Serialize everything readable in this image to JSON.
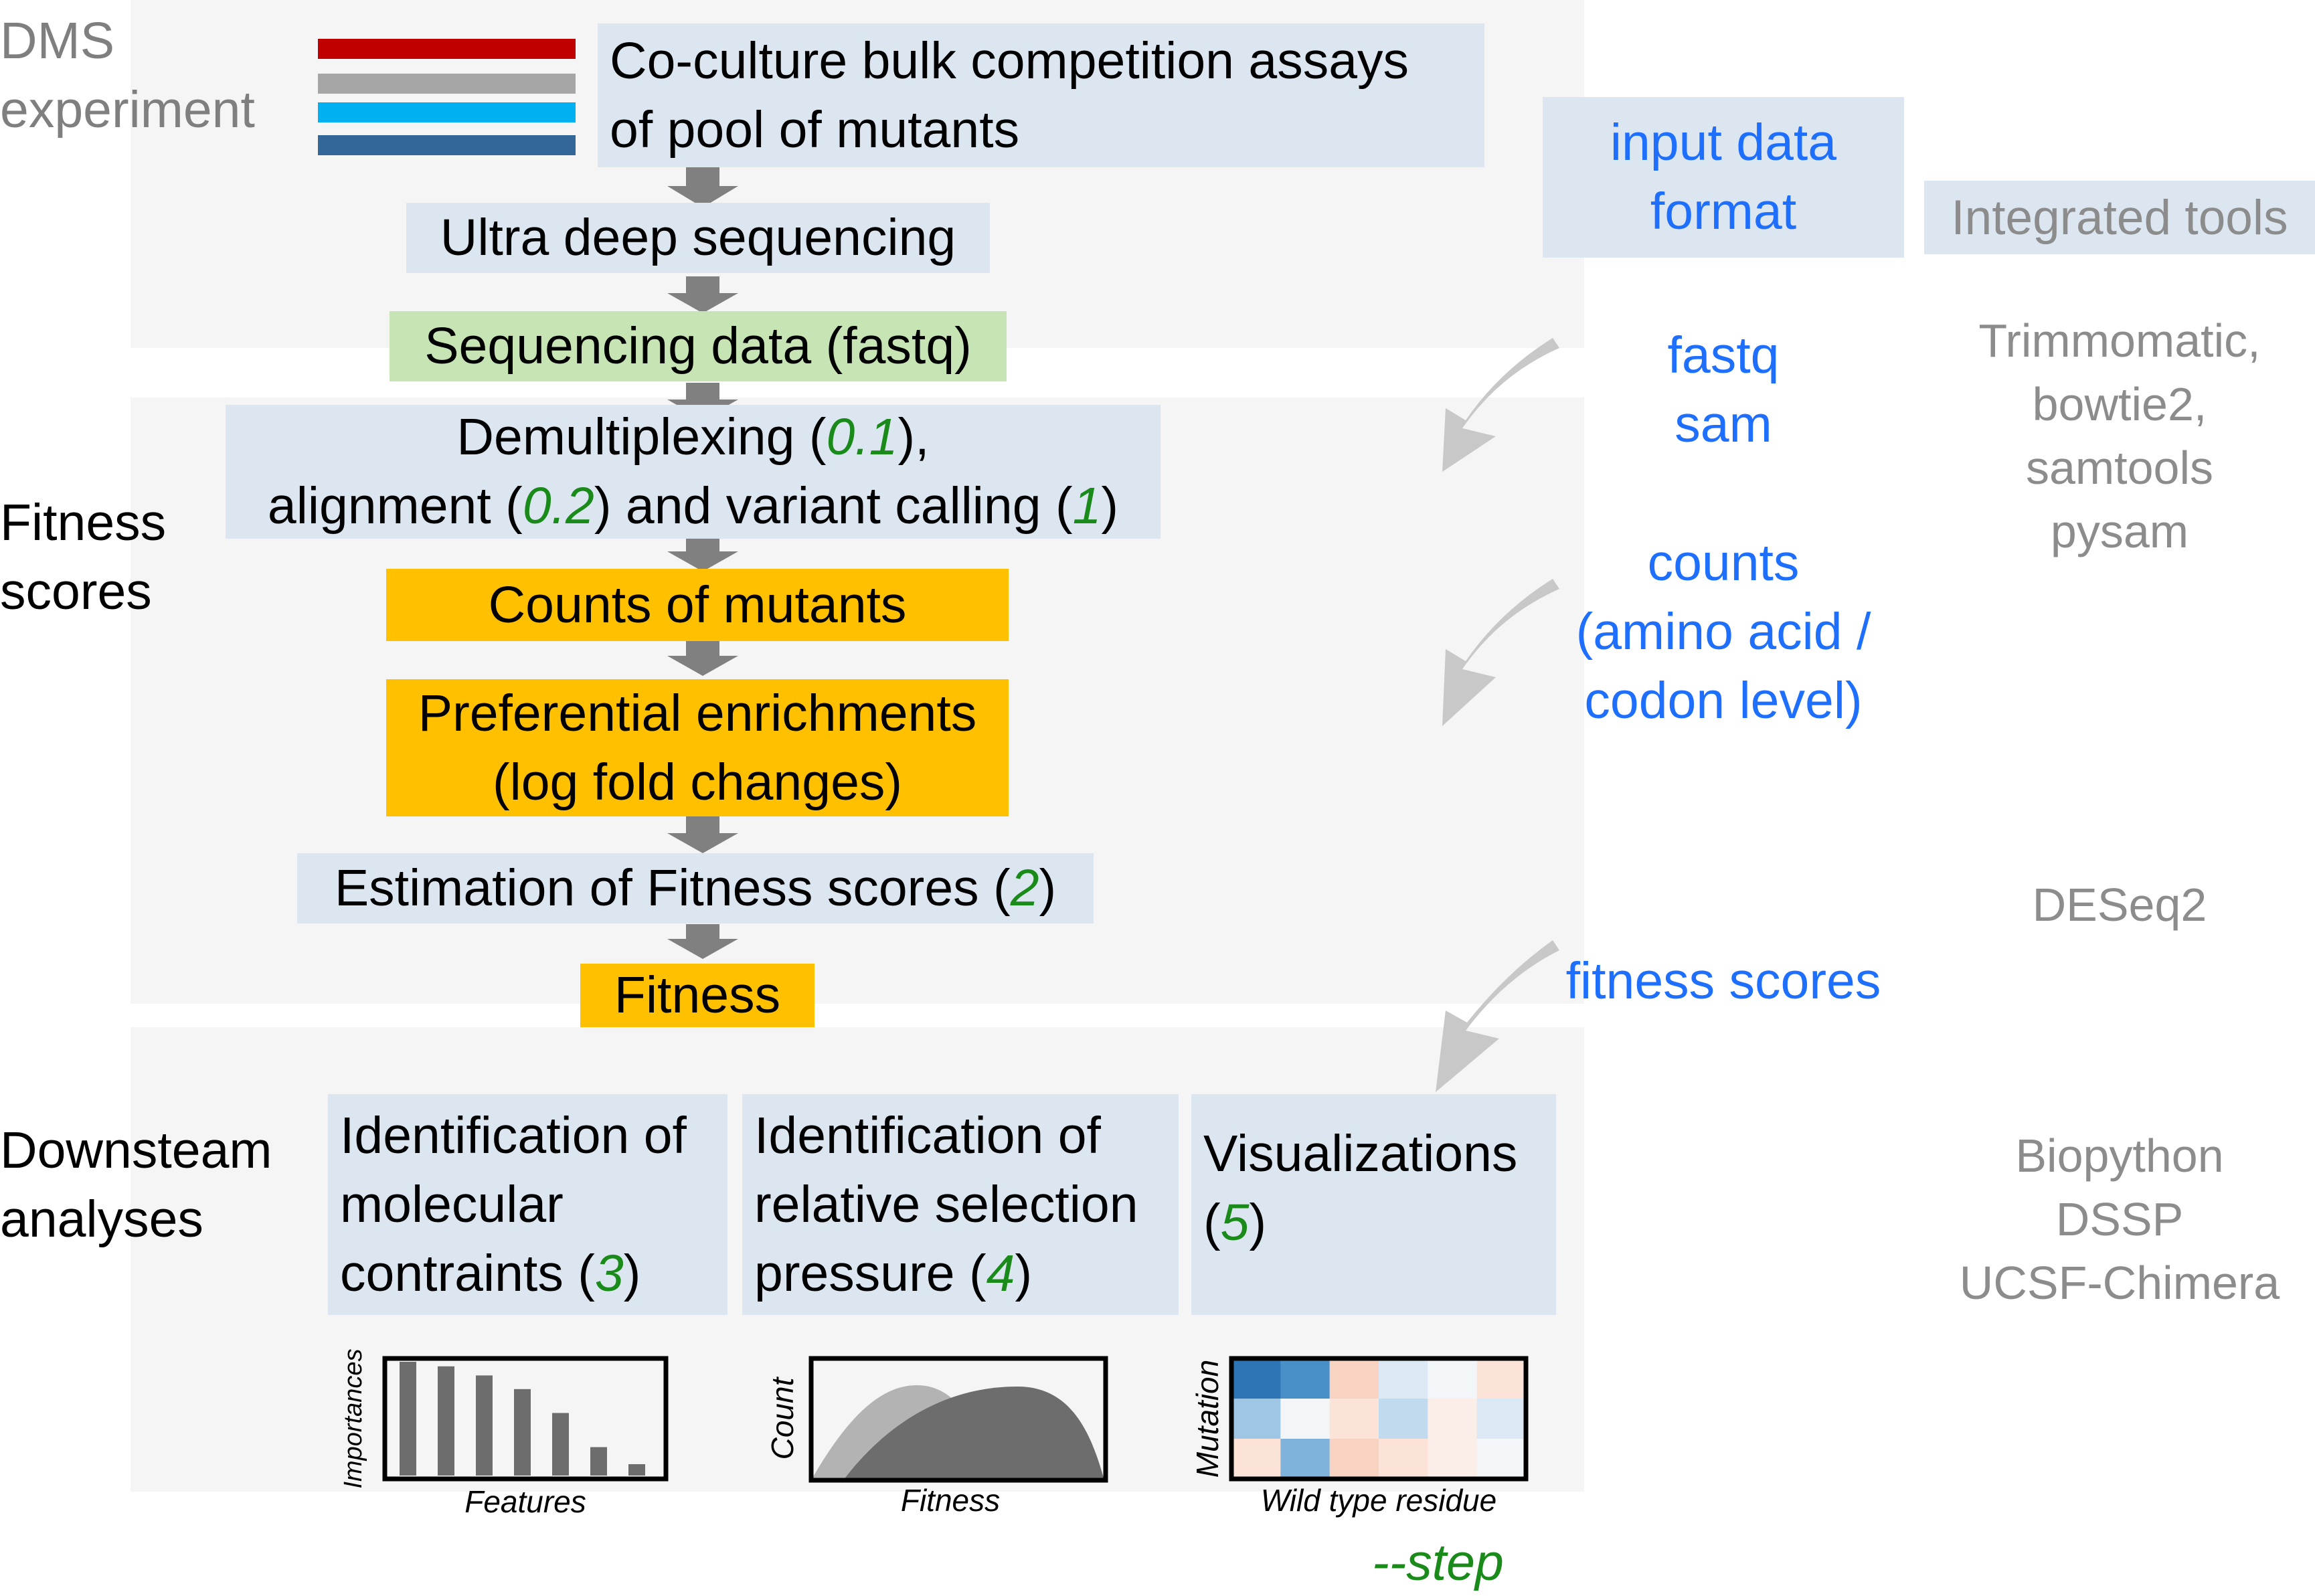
{
  "sections": {
    "dms": [
      "DMS",
      "experiment"
    ],
    "fitness": [
      "Fitness",
      "scores"
    ],
    "downstream": [
      "Downsteam",
      "analyses"
    ]
  },
  "legend_colors": [
    "#c00000",
    "#a6a6a6",
    "#00b0f0",
    "#336699"
  ],
  "boxes": {
    "coculture": [
      "Co-culture bulk competition assays",
      "of pool of mutants"
    ],
    "sequencing": "Ultra deep sequencing",
    "seqdata": "Sequencing data (fastq)",
    "demux": {
      "line1_a": "Demultiplexing (",
      "line1_step": "0.1",
      "line1_b": "),",
      "line2_a": "alignment (",
      "line2_step": "0.2",
      "line2_b": ") and variant calling (",
      "line2_step2": "1",
      "line2_c": ")"
    },
    "counts": "Counts of mutants",
    "enrich": [
      "Preferential enrichments",
      "(log fold changes)"
    ],
    "estimation": {
      "a": "Estimation of Fitness scores (",
      "step": "2",
      "b": ")"
    },
    "fitness": "Fitness",
    "identification1": {
      "l1": "Identification of",
      "l2": "molecular",
      "l3a": "contraints (",
      "step": "3",
      "l3b": ")"
    },
    "identification2": {
      "l1": "Identification of",
      "l2": "relative selection",
      "l3a": "pressure (",
      "step": "4",
      "l3b": ")"
    },
    "visualizations": {
      "l1": "Visualizations",
      "l2a": "(",
      "step": "5",
      "l2b": ")"
    }
  },
  "formats": {
    "header": [
      "input data",
      "format"
    ],
    "fastq": [
      "fastq",
      "sam"
    ],
    "counts": [
      "counts",
      "(amino acid /",
      "codon level)"
    ],
    "fitness": "fitness scores"
  },
  "tools": {
    "header": "Integrated tools",
    "group1": [
      "Trimmomatic,",
      "bowtie2,",
      "samtools",
      "pysam"
    ],
    "group2": "DESeq2",
    "group3": [
      "Biopython",
      "DSSP",
      "UCSF-Chimera"
    ]
  },
  "mini_bar": {
    "ylabel": "Importances",
    "xlabel": "Features",
    "values": [
      100,
      96,
      88,
      76,
      55,
      25,
      10
    ]
  },
  "mini_dist": {
    "ylabel": "Count",
    "xlabel": "Fitness"
  },
  "mini_heat": {
    "ylabel": "Mutation",
    "xlabel": "Wild type residue",
    "cells": [
      [
        "#2e75b6",
        "#4a90c8",
        "#f9d3c1",
        "#dce9f5",
        "#f3f6f9",
        "#fbe3d8"
      ],
      [
        "#9fc6e4",
        "#f3f6f9",
        "#fbe3d8",
        "#c2daee",
        "#fbeee8",
        "#dce9f5"
      ],
      [
        "#fbe3d8",
        "#7fb3dc",
        "#f9d3c1",
        "#fbe3d8",
        "#fbeee8",
        "#f3f6f9"
      ]
    ]
  },
  "step_legend": "--step"
}
